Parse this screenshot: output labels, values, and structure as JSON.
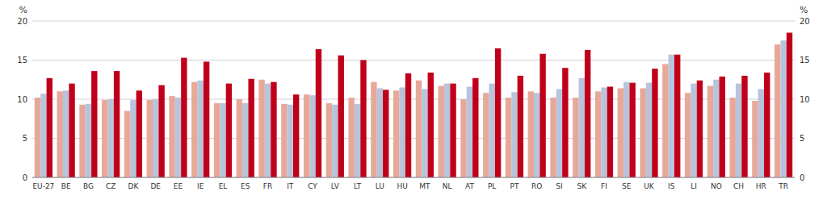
{
  "chart_data": {
    "type": "bar",
    "categories": [
      "EU-27",
      "BE",
      "BG",
      "CZ",
      "DK",
      "DE",
      "EE",
      "IE",
      "EL",
      "ES",
      "FR",
      "IT",
      "CY",
      "LV",
      "LT",
      "LU",
      "HU",
      "MT",
      "NL",
      "AT",
      "PL",
      "PT",
      "RO",
      "SI",
      "SK",
      "FI",
      "SE",
      "UK",
      "IS",
      "LI",
      "NO",
      "CH",
      "HR",
      "TR"
    ],
    "series": [
      {
        "color": "#e8a898",
        "values": [
          10.2,
          11.0,
          9.3,
          9.9,
          8.5,
          9.9,
          10.4,
          12.2,
          9.5,
          10.0,
          12.5,
          9.4,
          10.6,
          9.5,
          10.2,
          12.2,
          11.1,
          12.4,
          11.7,
          10.0,
          10.8,
          10.2,
          11.0,
          10.2,
          10.2,
          11.0,
          11.4,
          11.4,
          14.5,
          10.8,
          11.7,
          10.2,
          9.8,
          17.0
        ]
      },
      {
        "color": "#b8c4dc",
        "values": [
          10.7,
          11.1,
          9.4,
          10.0,
          9.9,
          10.0,
          10.2,
          12.4,
          9.5,
          9.5,
          12.0,
          9.3,
          10.5,
          9.3,
          9.4,
          11.4,
          11.5,
          11.3,
          12.0,
          11.6,
          12.0,
          10.9,
          10.8,
          11.3,
          12.7,
          11.5,
          12.2,
          12.1,
          15.7,
          12.0,
          12.5,
          12.0,
          11.3,
          17.5
        ]
      },
      {
        "color": "#c0001a",
        "values": [
          12.7,
          12.0,
          13.6,
          13.6,
          11.1,
          11.8,
          15.3,
          14.8,
          12.0,
          12.6,
          12.2,
          10.6,
          16.4,
          15.6,
          15.0,
          11.2,
          13.3,
          13.4,
          12.0,
          12.7,
          16.5,
          13.0,
          15.8,
          14.0,
          16.3,
          11.6,
          12.1,
          13.9,
          15.7,
          12.4,
          12.9,
          13.0,
          13.4,
          18.5
        ]
      }
    ],
    "ylabel": "%",
    "y2label": "%",
    "ylim": [
      0,
      20
    ],
    "yticks": [
      0,
      5,
      10,
      15,
      20
    ],
    "y2lim": [
      0,
      20
    ],
    "y2ticks": [
      0,
      5,
      10,
      15,
      20
    ],
    "grid": true
  }
}
